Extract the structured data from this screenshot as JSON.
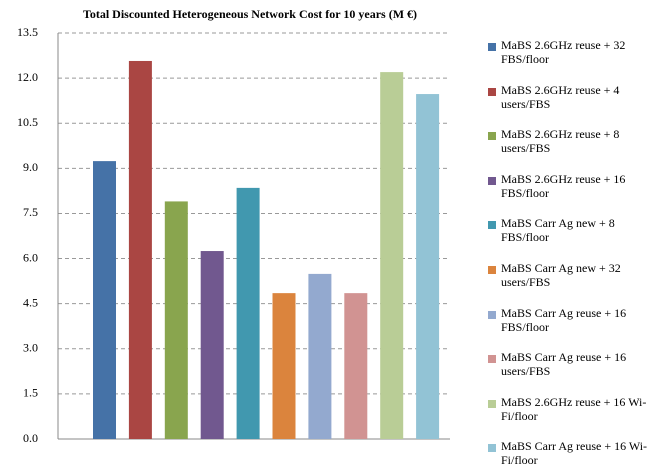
{
  "chart_data": {
    "type": "bar",
    "title": "Total Discounted Heterogeneous Network Cost for 10 years (M €)",
    "ylim": [
      0,
      13.5
    ],
    "yticks": [
      {
        "value": 0,
        "label": "0.0"
      },
      {
        "value": 1.5,
        "label": "1.5"
      },
      {
        "value": 3,
        "label": "3.0"
      },
      {
        "value": 4.5,
        "label": "4.5"
      },
      {
        "value": 6,
        "label": "6.0"
      },
      {
        "value": 7.5,
        "label": "7.5"
      },
      {
        "value": 9,
        "label": "9.0"
      },
      {
        "value": 10.5,
        "label": "10.5"
      },
      {
        "value": 12,
        "label": "12.0"
      },
      {
        "value": 13.5,
        "label": "13.5"
      }
    ],
    "grid": true,
    "legend": "right",
    "series": [
      {
        "name": "MaBS 2.6GHz  reuse +  32 FBS/floor",
        "color": "#4572a7",
        "values": [
          9.24
        ]
      },
      {
        "name": "MaBS 2.6GHz   reuse +  4 users/FBS",
        "color": "#aa4643",
        "values": [
          12.57
        ]
      },
      {
        "name": "MaBS 2.6GHz   reuse +  8 users/FBS",
        "color": "#89a54e",
        "values": [
          7.9
        ]
      },
      {
        "name": "MaBS 2.6GHz   reuse +  16 FBS/floor",
        "color": "#71588f",
        "values": [
          6.25
        ]
      },
      {
        "name": "MaBS Carr Ag new + 8 FBS/floor",
        "color": "#4198af",
        "values": [
          8.35
        ]
      },
      {
        "name": "MaBS Carr Ag new + 32 users/FBS",
        "color": "#db843d",
        "values": [
          4.85
        ]
      },
      {
        "name": "MaBS Carr Ag  reuse + 16 FBS/floor",
        "color": "#93a9cf",
        "values": [
          5.49
        ]
      },
      {
        "name": "MaBS Carr Ag  reuse + 16 users/FBS",
        "color": "#d19392",
        "values": [
          4.85
        ]
      },
      {
        "name": "MaBS 2.6GHz  reuse +  16 Wi-Fi/floor",
        "color": "#b9cd96",
        "values": [
          12.2
        ]
      },
      {
        "name": "MaBS Carr Ag  reuse + 16 Wi-Fi/floor",
        "color": "#92c3d5",
        "values": [
          11.47
        ]
      }
    ]
  }
}
